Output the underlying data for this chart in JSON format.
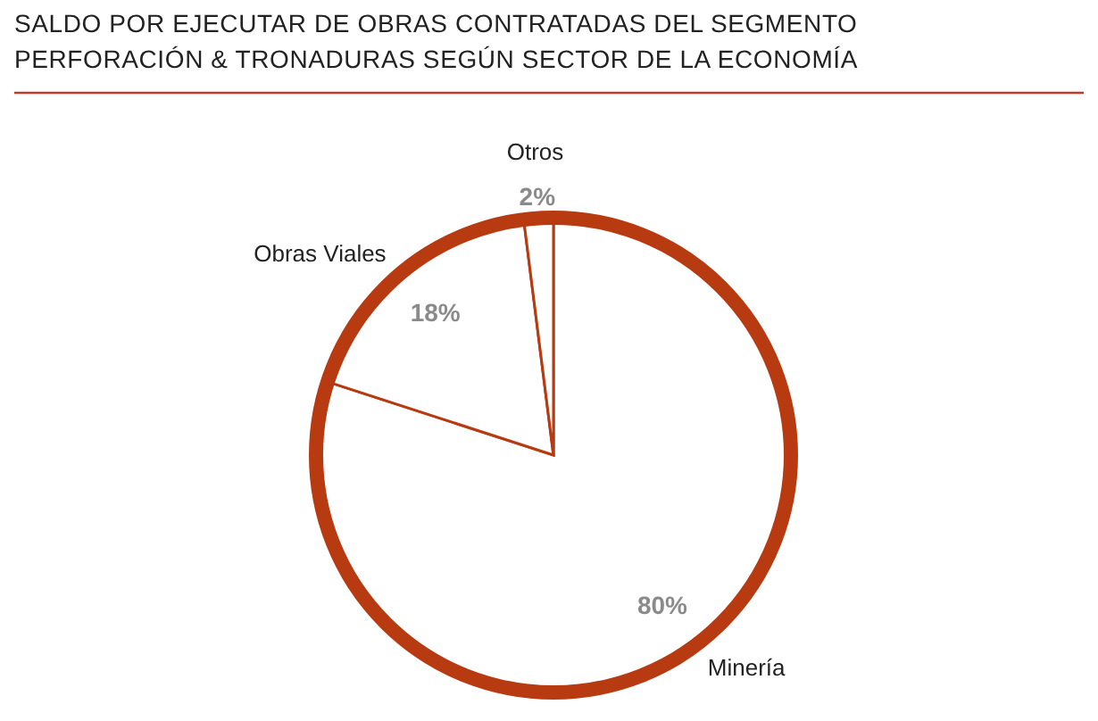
{
  "chart_data": {
    "type": "pie",
    "title": "SALDO POR EJECUTAR DE OBRAS CONTRATADAS DEL SEGMENTO PERFORACIÓN & TRONADURAS SEGÚN SECTOR DE LA ECONOMÍA",
    "categories": [
      "Minería",
      "Obras Viales",
      "Otros"
    ],
    "values": [
      80,
      18,
      2
    ],
    "value_labels": [
      "80%",
      "18%",
      "2%"
    ],
    "colors": [
      "#ffffff",
      "#ffffff",
      "#ffffff"
    ]
  }
}
